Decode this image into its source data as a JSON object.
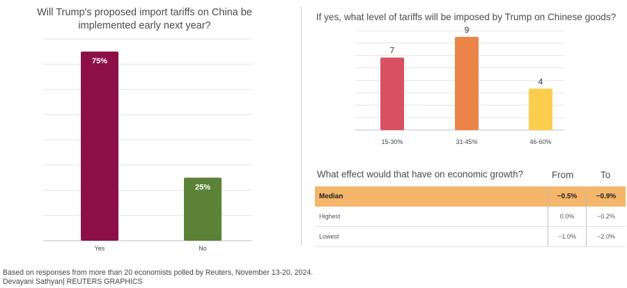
{
  "colors": {
    "yes_bar": "#8c0f47",
    "no_bar": "#5b8237",
    "tariff_15_30": "#d85163",
    "tariff_31_45": "#ec844a",
    "tariff_46_60": "#fccd4f",
    "median_row": "#f5b56b",
    "grid": "#e3e3e3"
  },
  "chart_data": [
    {
      "type": "bar",
      "title": "Will Trump's proposed import tariffs on China be implemented early next year?",
      "categories": [
        "Yes",
        "No"
      ],
      "values": [
        75,
        25
      ],
      "value_labels": [
        "75%",
        "25%"
      ],
      "unit": "%",
      "ylim": [
        0,
        80
      ],
      "grid": true
    },
    {
      "type": "bar",
      "title": "If yes, what level of tariffs will be imposed by Trump on Chinese goods?",
      "categories": [
        "15-30%",
        "31-45%",
        "46-60%"
      ],
      "values": [
        7,
        9,
        4
      ],
      "value_labels": [
        "7",
        "9",
        "4"
      ],
      "ylim": [
        0,
        9.6
      ],
      "grid": true
    },
    {
      "type": "table",
      "title": "What effect would that have on economic growth?",
      "columns": [
        "From",
        "To"
      ],
      "rows": [
        {
          "label": "Median",
          "from": "−0.5%",
          "to": "−0.9%"
        },
        {
          "label": "Highest",
          "from": "0.0%",
          "to": "−0.2%"
        },
        {
          "label": "Lowest",
          "from": "−1.0%",
          "to": "−2.0%"
        }
      ]
    }
  ],
  "footnote": {
    "source": "Based on responses from more than 20 economists polled by Reuters, November 13-20, 2024.",
    "credit": "Devayani Sathyan| REUTERS GRAPHICS"
  }
}
